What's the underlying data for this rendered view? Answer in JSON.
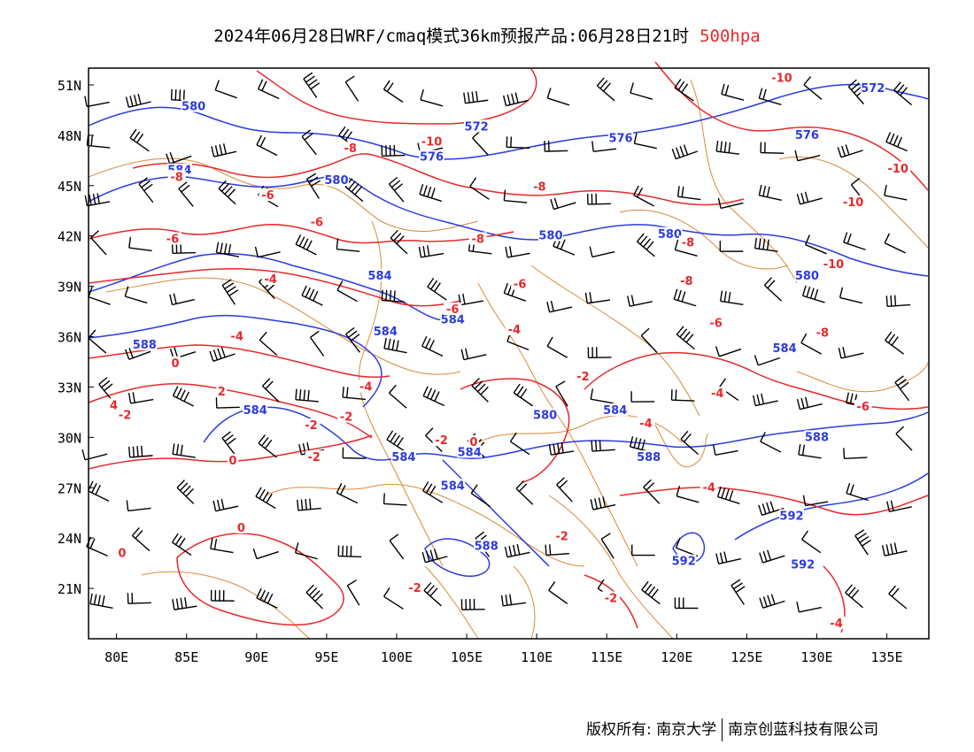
{
  "title": {
    "main": "2024年06月28日WRF/cmaq模式36km预报产品:06月28日21时",
    "level": "500hpa"
  },
  "axes": {
    "lat_labels": [
      "51N",
      "48N",
      "45N",
      "42N",
      "39N",
      "36N",
      "33N",
      "30N",
      "27N",
      "24N",
      "21N"
    ],
    "lat_values": [
      51,
      48,
      45,
      42,
      39,
      36,
      33,
      30,
      27,
      24,
      21
    ],
    "lon_labels": [
      "80E",
      "85E",
      "90E",
      "95E",
      "100E",
      "105E",
      "110E",
      "115E",
      "120E",
      "125E",
      "130E",
      "135E"
    ],
    "lon_values": [
      80,
      85,
      90,
      95,
      100,
      105,
      110,
      115,
      120,
      125,
      130,
      135
    ]
  },
  "map": {
    "lon_range": [
      78,
      138
    ],
    "lat_range": [
      18,
      52
    ],
    "contour_colors": {
      "height": "#2b3bde",
      "temperature": "#e8282b",
      "border": "#d98a3a",
      "wind": "#000000"
    }
  },
  "height_labels": [
    {
      "text": "580",
      "lon": 85.5,
      "lat": 49.7
    },
    {
      "text": "584",
      "lon": 84.5,
      "lat": 45.9
    },
    {
      "text": "572",
      "lon": 105.7,
      "lat": 48.5
    },
    {
      "text": "576",
      "lon": 102.5,
      "lat": 46.7
    },
    {
      "text": "580",
      "lon": 95.7,
      "lat": 45.3
    },
    {
      "text": "576",
      "lon": 116.0,
      "lat": 47.8
    },
    {
      "text": "576",
      "lon": 129.3,
      "lat": 48.0
    },
    {
      "text": "572",
      "lon": 134.0,
      "lat": 50.8
    },
    {
      "text": "580",
      "lon": 111.0,
      "lat": 42.0
    },
    {
      "text": "580",
      "lon": 119.5,
      "lat": 42.1
    },
    {
      "text": "580",
      "lon": 129.3,
      "lat": 39.6
    },
    {
      "text": "584",
      "lon": 98.8,
      "lat": 39.6
    },
    {
      "text": "584",
      "lon": 104.0,
      "lat": 37.0
    },
    {
      "text": "584",
      "lon": 99.2,
      "lat": 36.3
    },
    {
      "text": "588",
      "lon": 82.0,
      "lat": 35.5
    },
    {
      "text": "584",
      "lon": 127.7,
      "lat": 35.3
    },
    {
      "text": "584",
      "lon": 89.9,
      "lat": 31.6
    },
    {
      "text": "580",
      "lon": 110.6,
      "lat": 31.3
    },
    {
      "text": "584",
      "lon": 115.6,
      "lat": 31.6
    },
    {
      "text": "588",
      "lon": 130.0,
      "lat": 30.0
    },
    {
      "text": "584",
      "lon": 100.5,
      "lat": 28.8
    },
    {
      "text": "584",
      "lon": 105.2,
      "lat": 29.1
    },
    {
      "text": "588",
      "lon": 118.0,
      "lat": 28.8
    },
    {
      "text": "584",
      "lon": 104.0,
      "lat": 27.1
    },
    {
      "text": "592",
      "lon": 128.2,
      "lat": 25.3
    },
    {
      "text": "588",
      "lon": 106.4,
      "lat": 23.5
    },
    {
      "text": "592",
      "lon": 120.5,
      "lat": 22.6
    },
    {
      "text": "592",
      "lon": 129.0,
      "lat": 22.4
    }
  ],
  "temperature_labels": [
    {
      "text": "-10",
      "lon": 127.5,
      "lat": 51.4
    },
    {
      "text": "-10",
      "lon": 102.5,
      "lat": 47.6
    },
    {
      "text": "-8",
      "lon": 96.7,
      "lat": 47.2
    },
    {
      "text": "-8",
      "lon": 84.3,
      "lat": 45.5
    },
    {
      "text": "-6",
      "lon": 90.8,
      "lat": 44.4
    },
    {
      "text": "-6",
      "lon": 94.3,
      "lat": 42.8
    },
    {
      "text": "-8",
      "lon": 110.2,
      "lat": 44.9
    },
    {
      "text": "-6",
      "lon": 84.0,
      "lat": 41.8
    },
    {
      "text": "-8",
      "lon": 105.8,
      "lat": 41.8
    },
    {
      "text": "-4",
      "lon": 91.0,
      "lat": 39.4
    },
    {
      "text": "-8",
      "lon": 120.8,
      "lat": 41.6
    },
    {
      "text": "-10",
      "lon": 135.8,
      "lat": 46.0
    },
    {
      "text": "-10",
      "lon": 132.6,
      "lat": 44.0
    },
    {
      "text": "-10",
      "lon": 131.2,
      "lat": 40.3
    },
    {
      "text": "-8",
      "lon": 120.7,
      "lat": 39.3
    },
    {
      "text": "-6",
      "lon": 108.8,
      "lat": 39.1
    },
    {
      "text": "-6",
      "lon": 104.0,
      "lat": 37.6
    },
    {
      "text": "-6",
      "lon": 122.8,
      "lat": 36.8
    },
    {
      "text": "-8",
      "lon": 130.4,
      "lat": 36.2
    },
    {
      "text": "-4",
      "lon": 88.6,
      "lat": 36.0
    },
    {
      "text": "-4",
      "lon": 108.4,
      "lat": 36.4
    },
    {
      "text": "0",
      "lon": 84.2,
      "lat": 34.4
    },
    {
      "text": "-4",
      "lon": 97.8,
      "lat": 33.0
    },
    {
      "text": "-2",
      "lon": 113.3,
      "lat": 33.6
    },
    {
      "text": "2",
      "lon": 87.5,
      "lat": 32.7
    },
    {
      "text": "-4",
      "lon": 122.9,
      "lat": 32.6
    },
    {
      "text": "4",
      "lon": 79.8,
      "lat": 31.9
    },
    {
      "text": "-2",
      "lon": 80.6,
      "lat": 31.3
    },
    {
      "text": "-2",
      "lon": 96.4,
      "lat": 31.2
    },
    {
      "text": "-6",
      "lon": 133.3,
      "lat": 31.8
    },
    {
      "text": "-4",
      "lon": 117.8,
      "lat": 30.8
    },
    {
      "text": "-2",
      "lon": 93.9,
      "lat": 30.7
    },
    {
      "text": "-2",
      "lon": 103.2,
      "lat": 29.8
    },
    {
      "text": "0",
      "lon": 105.5,
      "lat": 29.7
    },
    {
      "text": "-2",
      "lon": 94.1,
      "lat": 28.8
    },
    {
      "text": "0",
      "lon": 88.3,
      "lat": 28.6
    },
    {
      "text": "-4",
      "lon": 122.3,
      "lat": 27.0
    },
    {
      "text": "0",
      "lon": 88.9,
      "lat": 24.6
    },
    {
      "text": "-2",
      "lon": 111.8,
      "lat": 24.1
    },
    {
      "text": "0",
      "lon": 80.4,
      "lat": 23.1
    },
    {
      "text": "-2",
      "lon": 101.3,
      "lat": 21.0
    },
    {
      "text": "-2",
      "lon": 115.3,
      "lat": 20.4
    },
    {
      "text": "-4",
      "lon": 131.4,
      "lat": 18.9
    }
  ],
  "copyright": {
    "left": "版权所有: 南京大学",
    "right": "南京创蓝科技有限公司"
  }
}
